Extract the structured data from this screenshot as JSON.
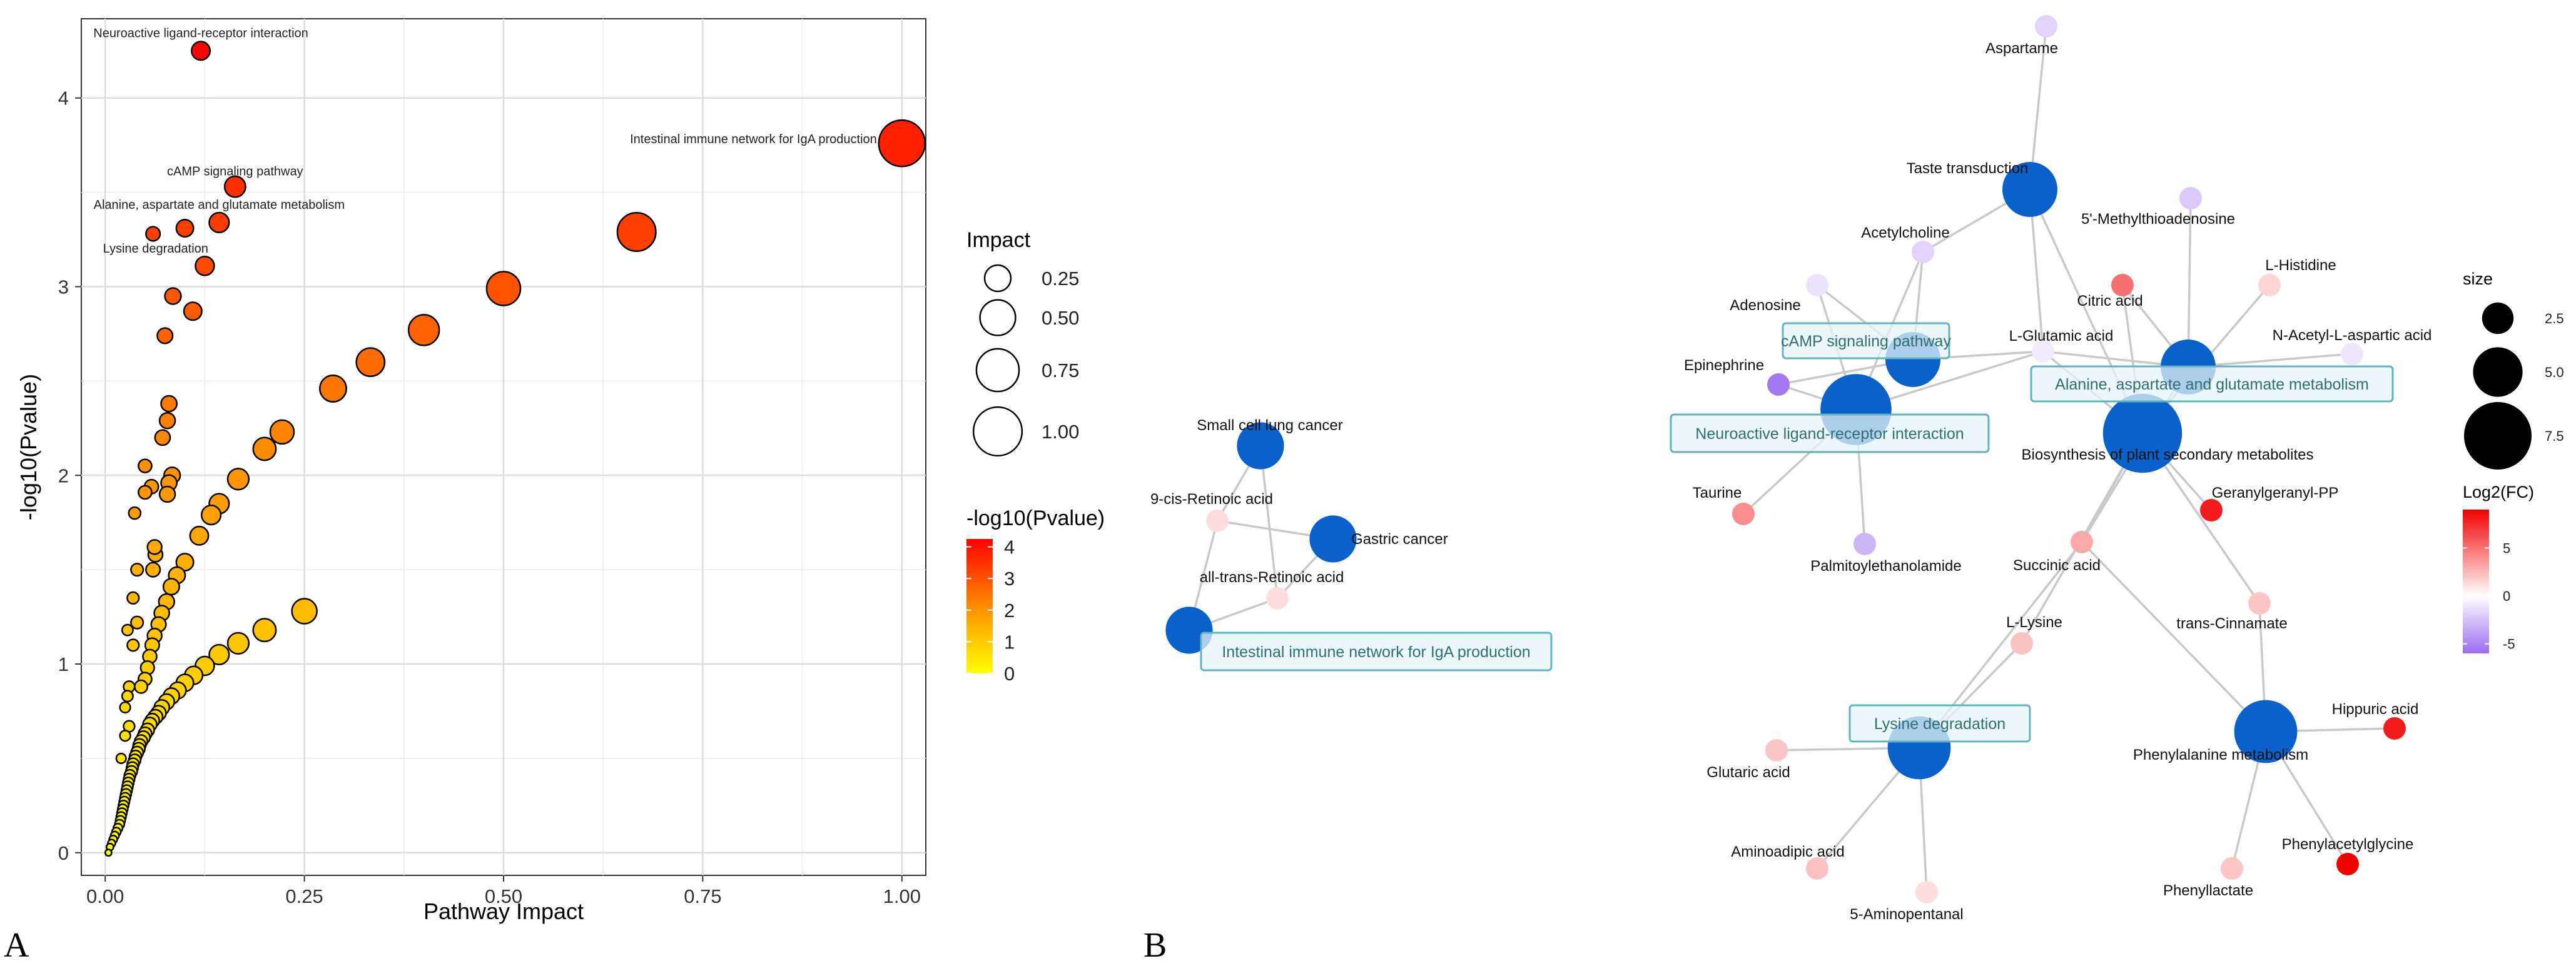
{
  "panels": {
    "a_label": "A",
    "b_label": "B"
  },
  "chart_data": [
    {
      "type": "scatter",
      "panel": "A",
      "xlabel": "Pathway Impact",
      "ylabel": "-log10(Pvalue)",
      "xlim": [
        -0.03,
        1.03
      ],
      "ylim": [
        -0.12,
        4.42
      ],
      "x_ticks": [
        0.0,
        0.25,
        0.5,
        0.75,
        1.0
      ],
      "x_tick_labels": [
        "0.00",
        "0.25",
        "0.50",
        "0.75",
        "1.00"
      ],
      "y_ticks": [
        0,
        1,
        2,
        3,
        4
      ],
      "y_tick_labels": [
        "0",
        "1",
        "2",
        "3",
        "4"
      ],
      "grid": true,
      "size_legend": {
        "title": "Impact",
        "values": [
          0.25,
          0.5,
          0.75,
          1.0
        ],
        "labels": [
          "0.25",
          "0.50",
          "0.75",
          "1.00"
        ]
      },
      "color_legend": {
        "title": "-log10(Pvalue)",
        "min": 0,
        "max": 4.25,
        "ticks": [
          4,
          3,
          2,
          1,
          0
        ],
        "tick_labels": [
          "4",
          "3",
          "2",
          "1",
          "0"
        ],
        "colors": [
          "#ffff00",
          "#ff0000"
        ]
      },
      "labeled_points": [
        {
          "label": "Neuroactive ligand-receptor interaction",
          "x": 0.12,
          "y": 4.25
        },
        {
          "label": "Intestinal immune network for IgA production",
          "x": 1.0,
          "y": 3.76
        },
        {
          "label": "cAMP signaling pathway",
          "x": 0.163,
          "y": 3.53
        },
        {
          "label": "Alanine, aspartate and glutamate metabolism",
          "x": 0.143,
          "y": 3.34
        },
        {
          "label": "Lysine degradation",
          "x": 0.06,
          "y": 3.28
        }
      ],
      "points": [
        [
          0.12,
          4.25
        ],
        [
          1.0,
          3.76
        ],
        [
          0.163,
          3.53
        ],
        [
          0.143,
          3.34
        ],
        [
          0.1,
          3.31
        ],
        [
          0.06,
          3.28
        ],
        [
          0.667,
          3.29
        ],
        [
          0.125,
          3.11
        ],
        [
          0.5,
          2.99
        ],
        [
          0.085,
          2.95
        ],
        [
          0.11,
          2.87
        ],
        [
          0.4,
          2.77
        ],
        [
          0.075,
          2.74
        ],
        [
          0.333,
          2.6
        ],
        [
          0.286,
          2.46
        ],
        [
          0.08,
          2.38
        ],
        [
          0.078,
          2.29
        ],
        [
          0.222,
          2.23
        ],
        [
          0.072,
          2.2
        ],
        [
          0.2,
          2.14
        ],
        [
          0.084,
          2.0
        ],
        [
          0.05,
          2.05
        ],
        [
          0.167,
          1.98
        ],
        [
          0.08,
          1.96
        ],
        [
          0.058,
          1.94
        ],
        [
          0.05,
          1.91
        ],
        [
          0.078,
          1.9
        ],
        [
          0.143,
          1.85
        ],
        [
          0.133,
          1.79
        ],
        [
          0.037,
          1.8
        ],
        [
          0.118,
          1.68
        ],
        [
          0.062,
          1.62
        ],
        [
          0.063,
          1.58
        ],
        [
          0.1,
          1.54
        ],
        [
          0.09,
          1.47
        ],
        [
          0.04,
          1.5
        ],
        [
          0.06,
          1.5
        ],
        [
          0.083,
          1.41
        ],
        [
          0.035,
          1.35
        ],
        [
          0.077,
          1.33
        ],
        [
          0.25,
          1.28
        ],
        [
          0.071,
          1.27
        ],
        [
          0.067,
          1.21
        ],
        [
          0.2,
          1.18
        ],
        [
          0.04,
          1.22
        ],
        [
          0.028,
          1.18
        ],
        [
          0.062,
          1.15
        ],
        [
          0.167,
          1.11
        ],
        [
          0.059,
          1.1
        ],
        [
          0.143,
          1.05
        ],
        [
          0.035,
          1.1
        ],
        [
          0.056,
          1.04
        ],
        [
          0.125,
          0.99
        ],
        [
          0.053,
          0.98
        ],
        [
          0.111,
          0.94
        ],
        [
          0.05,
          0.92
        ],
        [
          0.1,
          0.9
        ],
        [
          0.03,
          0.88
        ],
        [
          0.045,
          0.88
        ],
        [
          0.091,
          0.86
        ],
        [
          0.083,
          0.83
        ],
        [
          0.028,
          0.83
        ],
        [
          0.077,
          0.8
        ],
        [
          0.071,
          0.77
        ],
        [
          0.025,
          0.77
        ],
        [
          0.067,
          0.74
        ],
        [
          0.063,
          0.72
        ],
        [
          0.059,
          0.7
        ],
        [
          0.056,
          0.68
        ],
        [
          0.03,
          0.67
        ],
        [
          0.053,
          0.65
        ],
        [
          0.05,
          0.63
        ],
        [
          0.048,
          0.61
        ],
        [
          0.045,
          0.59
        ],
        [
          0.025,
          0.62
        ],
        [
          0.043,
          0.57
        ],
        [
          0.042,
          0.55
        ],
        [
          0.04,
          0.53
        ],
        [
          0.038,
          0.51
        ],
        [
          0.02,
          0.5
        ],
        [
          0.037,
          0.49
        ],
        [
          0.035,
          0.47
        ],
        [
          0.034,
          0.45
        ],
        [
          0.033,
          0.43
        ],
        [
          0.031,
          0.41
        ],
        [
          0.03,
          0.39
        ],
        [
          0.029,
          0.37
        ],
        [
          0.028,
          0.35
        ],
        [
          0.027,
          0.33
        ],
        [
          0.026,
          0.31
        ],
        [
          0.025,
          0.29
        ],
        [
          0.024,
          0.27
        ],
        [
          0.023,
          0.25
        ],
        [
          0.022,
          0.23
        ],
        [
          0.021,
          0.21
        ],
        [
          0.02,
          0.19
        ],
        [
          0.019,
          0.17
        ],
        [
          0.018,
          0.15
        ],
        [
          0.016,
          0.13
        ],
        [
          0.014,
          0.11
        ],
        [
          0.012,
          0.09
        ],
        [
          0.01,
          0.07
        ],
        [
          0.008,
          0.05
        ],
        [
          0.006,
          0.03
        ],
        [
          0.004,
          0.0
        ]
      ]
    },
    {
      "type": "network",
      "panel": "B",
      "size_legend": {
        "title": "size",
        "values": [
          2.5,
          5.0,
          7.5
        ],
        "labels": [
          "2.5",
          "5.0",
          "7.5"
        ]
      },
      "color_legend": {
        "title": "Log2(FC)",
        "min": -6,
        "max": 9,
        "ticks": [
          5,
          0,
          -5
        ],
        "tick_labels": [
          "5",
          "0",
          "-5"
        ],
        "colors": [
          "#9b6cf0",
          "#ffffff",
          "#f20000"
        ]
      },
      "pathways": [
        {
          "label": "Small cell lung cancer",
          "size": 4
        },
        {
          "label": "Gastric cancer",
          "size": 4
        },
        {
          "label": "Intestinal immune network for IgA production",
          "size": 4
        },
        {
          "label": "Taste transduction",
          "size": 5
        },
        {
          "label": "cAMP signaling pathway",
          "size": 5
        },
        {
          "label": "Alanine, aspartate and glutamate metabolism",
          "size": 5
        },
        {
          "label": "Neuroactive ligand-receptor interaction",
          "size": 7
        },
        {
          "label": "Biosynthesis of plant secondary metabolites",
          "size": 8
        },
        {
          "label": "Lysine degradation",
          "size": 6
        },
        {
          "label": "Phenylalanine metabolism",
          "size": 6
        }
      ],
      "boxed_pathways": [
        "Intestinal immune network for IgA production",
        "cAMP signaling pathway",
        "Alanine, aspartate and glutamate metabolism",
        "Neuroactive ligand-receptor interaction",
        "Lysine degradation"
      ],
      "metabolites": [
        {
          "label": "9-cis-Retinoic acid",
          "fc": 1.2
        },
        {
          "label": "all-trans-Retinoic acid",
          "fc": 1.2
        },
        {
          "label": "Aspartame",
          "fc": -1.8
        },
        {
          "label": "5'-Methylthioadenosine",
          "fc": -2.2
        },
        {
          "label": "Acetylcholine",
          "fc": -1.8
        },
        {
          "label": "L-Histidine",
          "fc": 1.5
        },
        {
          "label": "Adenosine",
          "fc": -1.2
        },
        {
          "label": "Citric acid",
          "fc": 5.0
        },
        {
          "label": "L-Glutamic acid",
          "fc": -0.8
        },
        {
          "label": "N-Acetyl-L-aspartic acid",
          "fc": -1.0
        },
        {
          "label": "Epinephrine",
          "fc": -5.5
        },
        {
          "label": "Taurine",
          "fc": 4.0
        },
        {
          "label": "Geranylgeranyl-PP",
          "fc": 8.0
        },
        {
          "label": "Palmitoylethanolamide",
          "fc": -3.0
        },
        {
          "label": "Succinic acid",
          "fc": 3.0
        },
        {
          "label": "L-Lysine",
          "fc": 2.2
        },
        {
          "label": "trans-Cinnamate",
          "fc": 2.0
        },
        {
          "label": "Glutaric acid",
          "fc": 2.0
        },
        {
          "label": "Hippuric acid",
          "fc": 8.0
        },
        {
          "label": "Aminoadipic acid",
          "fc": 2.2
        },
        {
          "label": "Phenylacetylglycine",
          "fc": 9.0
        },
        {
          "label": "5-Aminopentanal",
          "fc": 1.2
        },
        {
          "label": "Phenyllactate",
          "fc": 2.0
        }
      ],
      "edges": [
        [
          "Small cell lung cancer",
          "9-cis-Retinoic acid"
        ],
        [
          "Small cell lung cancer",
          "all-trans-Retinoic acid"
        ],
        [
          "Gastric cancer",
          "9-cis-Retinoic acid"
        ],
        [
          "Gastric cancer",
          "all-trans-Retinoic acid"
        ],
        [
          "Intestinal immune network for IgA production",
          "9-cis-Retinoic acid"
        ],
        [
          "Intestinal immune network for IgA production",
          "all-trans-Retinoic acid"
        ],
        [
          "Taste transduction",
          "Aspartame"
        ],
        [
          "Taste transduction",
          "Acetylcholine"
        ],
        [
          "Taste transduction",
          "L-Glutamic acid"
        ],
        [
          "cAMP signaling pathway",
          "Acetylcholine"
        ],
        [
          "cAMP signaling pathway",
          "Adenosine"
        ],
        [
          "cAMP signaling pathway",
          "Epinephrine"
        ],
        [
          "cAMP signaling pathway",
          "L-Glutamic acid"
        ],
        [
          "Neuroactive ligand-receptor interaction",
          "Acetylcholine"
        ],
        [
          "Neuroactive ligand-receptor interaction",
          "Adenosine"
        ],
        [
          "Neuroactive ligand-receptor interaction",
          "Epinephrine"
        ],
        [
          "Neuroactive ligand-receptor interaction",
          "L-Glutamic acid"
        ],
        [
          "Neuroactive ligand-receptor interaction",
          "Taurine"
        ],
        [
          "Neuroactive ligand-receptor interaction",
          "Palmitoylethanolamide"
        ],
        [
          "Alanine, aspartate and glutamate metabolism",
          "L-Glutamic acid"
        ],
        [
          "Alanine, aspartate and glutamate metabolism",
          "Citric acid"
        ],
        [
          "Alanine, aspartate and glutamate metabolism",
          "N-Acetyl-L-aspartic acid"
        ],
        [
          "Alanine, aspartate and glutamate metabolism",
          "Succinic acid"
        ],
        [
          "Alanine, aspartate and glutamate metabolism",
          "5'-Methylthioadenosine"
        ],
        [
          "Biosynthesis of plant secondary metabolites",
          "Citric acid"
        ],
        [
          "Biosynthesis of plant secondary metabolites",
          "L-Glutamic acid"
        ],
        [
          "Biosynthesis of plant secondary metabolites",
          "L-Histidine"
        ],
        [
          "Biosynthesis of plant secondary metabolites",
          "Geranylgeranyl-PP"
        ],
        [
          "Biosynthesis of plant secondary metabolites",
          "Succinic acid"
        ],
        [
          "Biosynthesis of plant secondary metabolites",
          "trans-Cinnamate"
        ],
        [
          "Biosynthesis of plant secondary metabolites",
          "L-Lysine"
        ],
        [
          "Biosynthesis of plant secondary metabolites",
          "Taste transduction"
        ],
        [
          "Lysine degradation",
          "L-Lysine"
        ],
        [
          "Lysine degradation",
          "Succinic acid"
        ],
        [
          "Lysine degradation",
          "Glutaric acid"
        ],
        [
          "Lysine degradation",
          "Aminoadipic acid"
        ],
        [
          "Lysine degradation",
          "5-Aminopentanal"
        ],
        [
          "Phenylalanine metabolism",
          "Succinic acid"
        ],
        [
          "Phenylalanine metabolism",
          "trans-Cinnamate"
        ],
        [
          "Phenylalanine metabolism",
          "Hippuric acid"
        ],
        [
          "Phenylalanine metabolism",
          "Phenylacetylglycine"
        ],
        [
          "Phenylalanine metabolism",
          "Phenyllactate"
        ]
      ]
    }
  ]
}
